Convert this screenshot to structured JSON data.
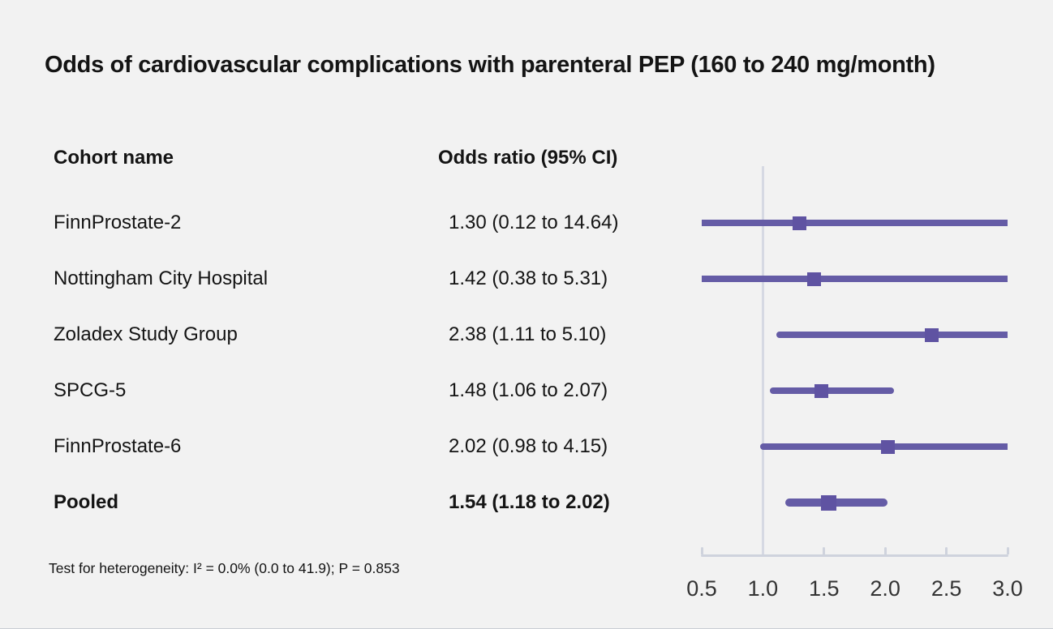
{
  "title": "Odds of cardiovascular complications with parenteral PEP (160 to 240 mg/month)",
  "table": {
    "cohort_header": "Cohort name",
    "or_header": "Odds ratio (95% CI)"
  },
  "footnote": "Test for heterogeneity: I² = 0.0% (0.0 to 41.9); P = 0.853",
  "colors": {
    "background": "#f2f2f2",
    "ci_line": "#655ca6",
    "marker": "#5f53a2",
    "reference_line": "#d6d9e3",
    "axis": "#cfd3dd",
    "tick_label": "#333333",
    "text": "#141414"
  },
  "chart_data": {
    "type": "scatter",
    "variant": "forest-plot",
    "title": "Odds of cardiovascular complications with parenteral PEP (160 to 240 mg/month)",
    "xlabel": "",
    "ylabel": "",
    "axis": {
      "min": 0.5,
      "max": 3.0,
      "scale": "linear",
      "ticks": [
        0.5,
        1.0,
        1.5,
        2.0,
        2.5,
        3.0
      ],
      "tick_labels": [
        "0.5",
        "1.0",
        "1.5",
        "2.0",
        "2.5",
        "3.0"
      ],
      "reference_line": 1.0
    },
    "legend": "none",
    "marker_shape": "square",
    "studies": [
      {
        "name": "FinnProstate-2",
        "or": 1.3,
        "ci_lower": 0.12,
        "ci_upper": 14.64,
        "label": "1.30 (0.12 to 14.64)",
        "pooled": false
      },
      {
        "name": "Nottingham City Hospital",
        "or": 1.42,
        "ci_lower": 0.38,
        "ci_upper": 5.31,
        "label": "1.42 (0.38 to 5.31)",
        "pooled": false
      },
      {
        "name": "Zoladex Study Group",
        "or": 2.38,
        "ci_lower": 1.11,
        "ci_upper": 5.1,
        "label": "2.38 (1.11 to 5.10)",
        "pooled": false
      },
      {
        "name": "SPCG-5",
        "or": 1.48,
        "ci_lower": 1.06,
        "ci_upper": 2.07,
        "label": "1.48 (1.06 to 2.07)",
        "pooled": false
      },
      {
        "name": "FinnProstate-6",
        "or": 2.02,
        "ci_lower": 0.98,
        "ci_upper": 4.15,
        "label": "2.02 (0.98 to 4.15)",
        "pooled": false
      },
      {
        "name": "Pooled",
        "or": 1.54,
        "ci_lower": 1.18,
        "ci_upper": 2.02,
        "label": "1.54 (1.18 to 2.02)",
        "pooled": true
      }
    ]
  }
}
